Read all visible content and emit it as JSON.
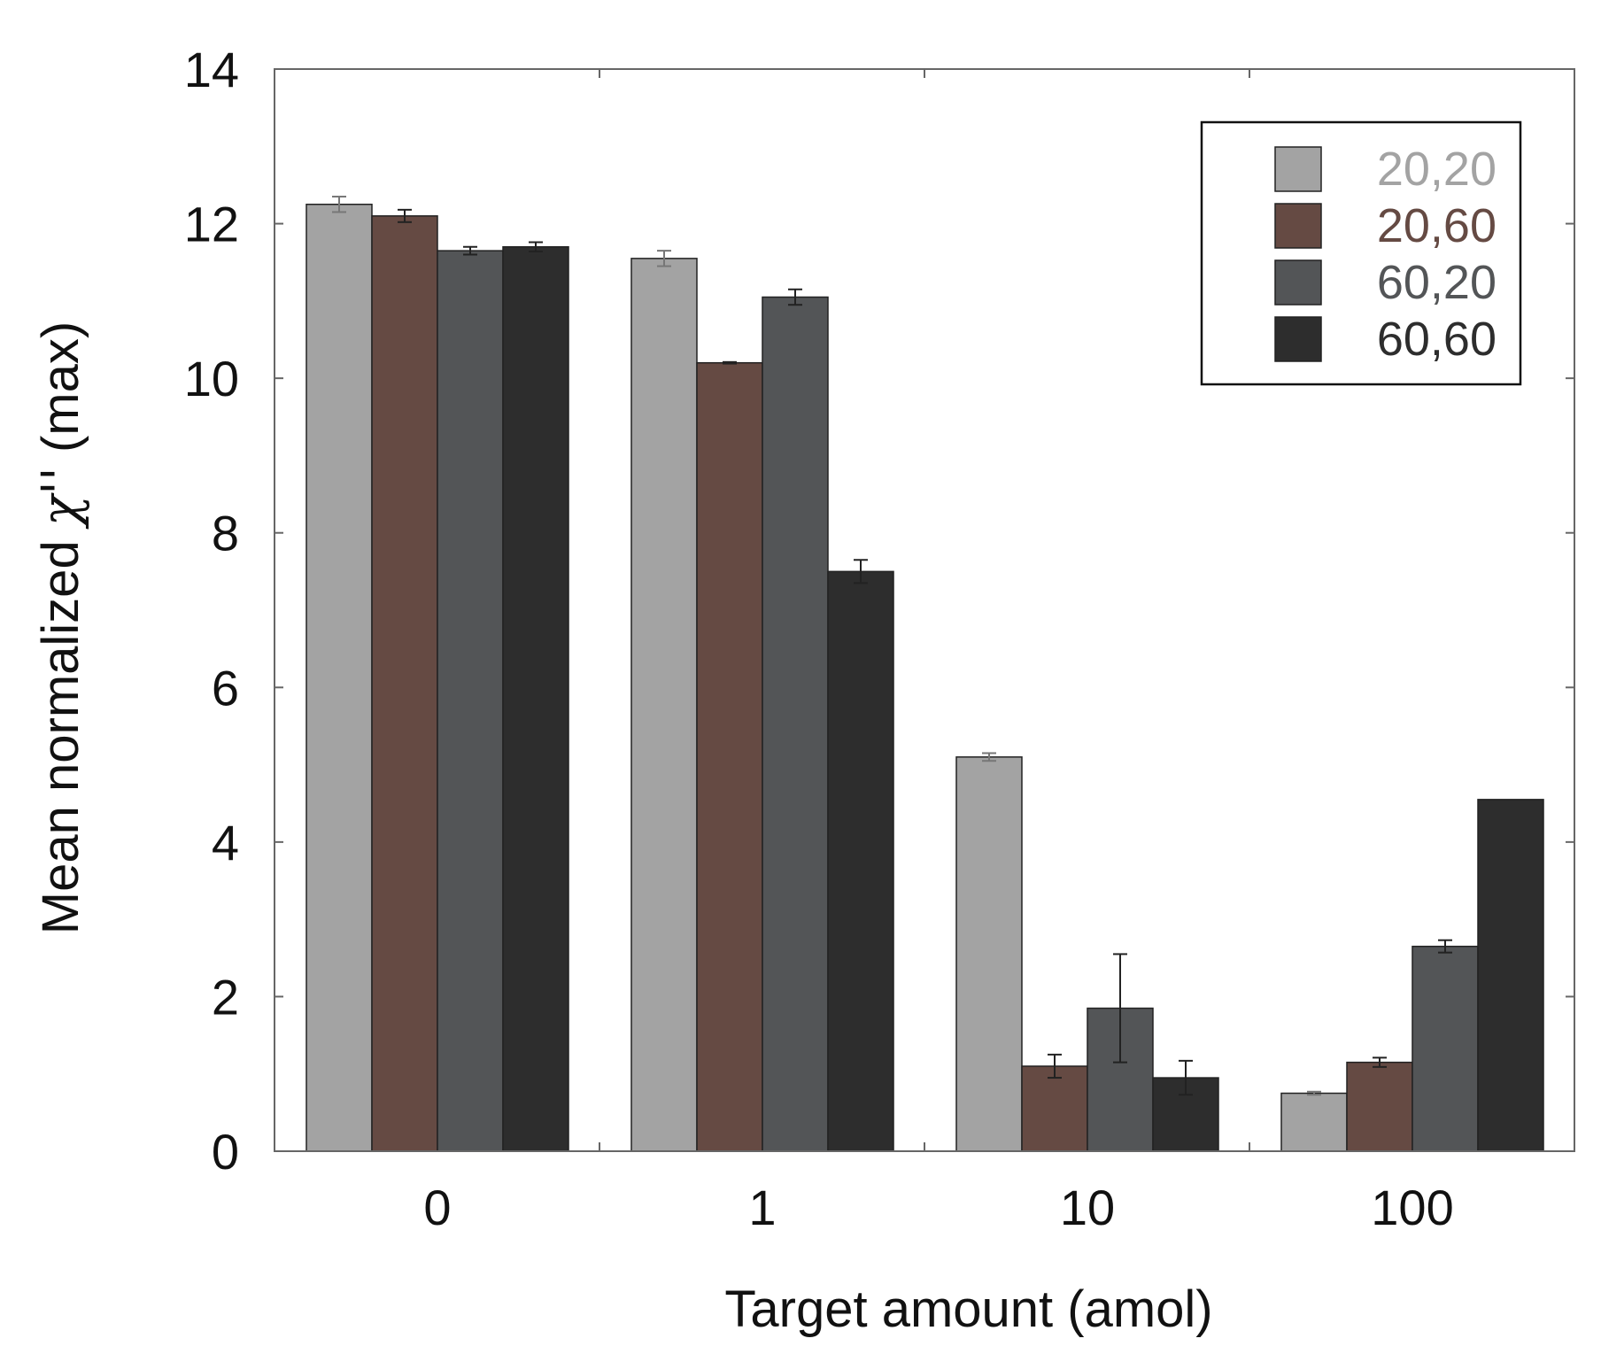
{
  "chart_data": {
    "type": "bar",
    "title": "",
    "xlabel": "Target amount (amol)",
    "ylabel_prefix": "Mean normalized ",
    "ylabel_symbol": "χ''",
    "ylabel_suffix": " (max)",
    "categories": [
      "0",
      "1",
      "10",
      "100"
    ],
    "ylim": [
      0,
      14
    ],
    "yticks": [
      "0",
      "2",
      "4",
      "6",
      "8",
      "10",
      "12",
      "14"
    ],
    "grid": false,
    "legend_position": "top-right",
    "series": [
      {
        "name": "20,20",
        "color": "#a3a3a3",
        "label_color": "#a3a3a3",
        "values": [
          12.25,
          11.55,
          5.1,
          0.75
        ],
        "errors": [
          0.1,
          0.1,
          0.05,
          0.02
        ]
      },
      {
        "name": "20,60",
        "color": "#654a43",
        "label_color": "#654a43",
        "values": [
          12.1,
          10.2,
          1.1,
          1.15
        ],
        "errors": [
          0.08,
          0.01,
          0.15,
          0.06
        ]
      },
      {
        "name": "60,20",
        "color": "#535557",
        "label_color": "#535557",
        "values": [
          11.65,
          11.05,
          1.85,
          2.65
        ],
        "errors": [
          0.05,
          0.1,
          0.7,
          0.08
        ]
      },
      {
        "name": "60,60",
        "color": "#2d2d2d",
        "label_color": "#2d2d2d",
        "values": [
          11.7,
          7.5,
          0.95,
          4.55
        ],
        "errors": [
          0.06,
          0.15,
          0.22,
          0.0
        ]
      }
    ]
  }
}
